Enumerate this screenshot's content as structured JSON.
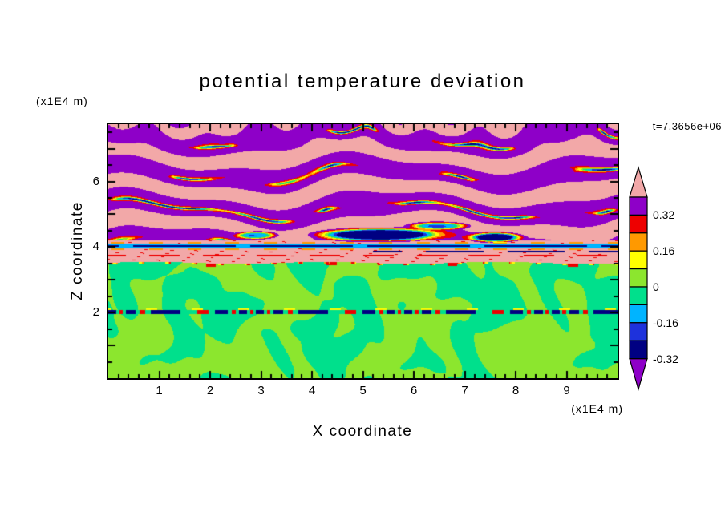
{
  "window": {
    "background": "#FFFFFF"
  },
  "title": "potential temperature deviation",
  "time_label": "t=7.3656e+06",
  "axes": {
    "x": {
      "label": "X coordinate",
      "unit": "(x1E4 m)",
      "min": 0,
      "max": 10,
      "major_ticks": [
        1,
        2,
        3,
        4,
        5,
        6,
        7,
        8,
        9
      ],
      "minor_step": 0.2
    },
    "z": {
      "label": "Z coordinate",
      "unit": "(x1E4 m)",
      "min": 0,
      "max": 7.75,
      "major_ticks": [
        1,
        2,
        3,
        4,
        5,
        6,
        7
      ],
      "labeled_ticks": [
        2,
        4,
        6
      ],
      "minor_step": 0.5
    }
  },
  "chart_data": {
    "type": "heatmap",
    "title": "potential temperature deviation",
    "xlabel": "X coordinate",
    "ylabel": "Z coordinate",
    "x_unit": "(x1E4 m)",
    "z_unit": "(x1E4 m)",
    "xlim": [
      0,
      10
    ],
    "zlim": [
      0,
      7.75
    ],
    "time": "t=7.3656e+06",
    "colorbar": {
      "boundaries": [
        0.4,
        0.32,
        0.24,
        0.16,
        0.08,
        0,
        -0.08,
        -0.16,
        -0.24,
        -0.32
      ],
      "band_colors": [
        "#8E00C8",
        "#EE0000",
        "#FF9900",
        "#FFFF00",
        "#8CE62E",
        "#00E08C",
        "#00B4FF",
        "#1E32DC",
        "#000082"
      ],
      "over_color": "#F2A8A8",
      "under_color": "#8E00C8",
      "labels": [
        {
          "text": "0.32",
          "value": 0.32
        },
        {
          "text": "0.16",
          "value": 0.16
        },
        {
          "text": "0",
          "value": 0
        },
        {
          "text": "-0.16",
          "value": -0.16
        },
        {
          "text": "-0.32",
          "value": -0.32
        }
      ]
    },
    "field_model": {
      "description": "Stratified shear turbulence: alternating pink/purple layers (theta' > 0.32) above z=4.2 with thin rainbow filament streaks; a salmon interface zone 3.55-4.2 crossed by a full-width navy/cyan shear line at z=4.03, a partial dark line at z=3.87, a red filament at z=3.74 and dark negative blobs; near-zero green turbulence (|theta'|<0.08) below z=3.5 with a thin navy/red breaking-wave line at z=2.0.",
      "green_top_z": 3.52,
      "band_zone_start_z": 4.2,
      "shear_line_z": 4.03,
      "secondary_line_z": 3.87,
      "red_line_z": 3.74,
      "lower_line_z": 2.02,
      "upper_bands": {
        "base": 0.385,
        "amplitude": 0.062,
        "z_frequency": 0.92
      },
      "lower_field": {
        "base": -0.008,
        "amplitude": 0.1
      },
      "dark_blobs": [
        {
          "x": 5.3,
          "z": 4.38,
          "rx": 1.05,
          "rz": 0.17,
          "amp": 0.95
        },
        {
          "x": 7.6,
          "z": 4.3,
          "rx": 0.45,
          "rz": 0.13,
          "amp": 0.85
        },
        {
          "x": 2.9,
          "z": 4.36,
          "rx": 0.35,
          "rz": 0.1,
          "amp": 0.6
        },
        {
          "x": 6.5,
          "z": 4.65,
          "rx": 0.5,
          "rz": 0.1,
          "amp": 0.55
        }
      ]
    }
  }
}
